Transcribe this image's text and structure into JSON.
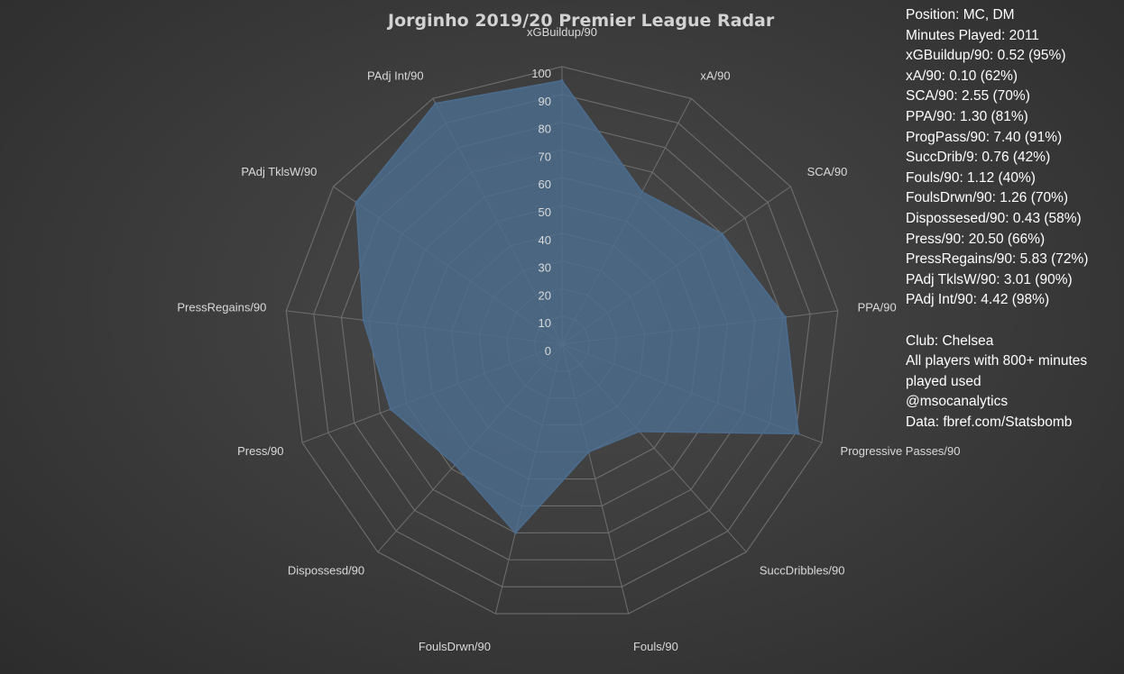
{
  "chart_data": {
    "type": "radar",
    "title": "Jorginho 2019/20 Premier League Radar",
    "rmin": 0,
    "rmax": 100,
    "step": 10,
    "ticks": [
      "0",
      "10",
      "20",
      "30",
      "40",
      "50",
      "60",
      "70",
      "80",
      "90",
      "100"
    ],
    "categories": [
      "xGBuildup/90",
      "xA/90",
      "SCA/90",
      "PPA/90",
      "Progressive Passes/90",
      "SuccDribbles/90",
      "Fouls/90",
      "FoulsDrwn/90",
      "Dispossesd/90",
      "Press/90",
      "PressRegains/90",
      "PAdj TklsW/90",
      "PAdj Int/90"
    ],
    "series": [
      {
        "values": [
          95,
          62,
          70,
          81,
          91,
          42,
          40,
          70,
          58,
          66,
          72,
          90,
          98
        ]
      }
    ],
    "fill_color": "#4c6c8e"
  },
  "info": {
    "lines": [
      "Position: MC, DM",
      "Minutes Played: 2011",
      "xGBuildup/90: 0.52 (95%)",
      "xA/90: 0.10 (62%)",
      "SCA/90: 2.55 (70%)",
      "PPA/90: 1.30 (81%)",
      "ProgPass/90: 7.40 (91%)",
      "SuccDrib/9: 0.76 (42%)",
      "Fouls/90: 1.12 (40%)",
      "FoulsDrwn/90: 1.26 (70%)",
      "Dispossesed/90: 0.43 (58%)",
      "Press/90: 20.50 (66%)",
      "PressRegains/90: 5.83 (72%)",
      "PAdj TklsW/90: 3.01 (90%)",
      "PAdj Int/90: 4.42 (98%)"
    ],
    "lines2": [
      "Club: Chelsea",
      "All players with 800+ minutes",
      "played used",
      "@msocanalytics",
      "Data: fbref.com/Statsbomb"
    ]
  }
}
